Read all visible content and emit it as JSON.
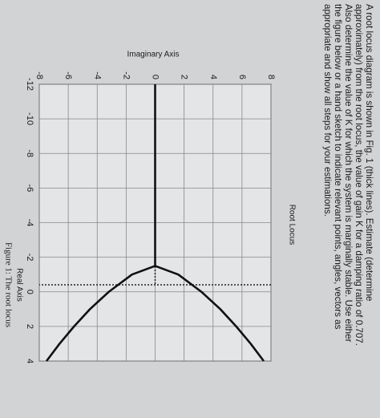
{
  "question": [
    "A root locus diagram is shown in Fig. 1 (thick lines). Estimate (determine",
    "approximately) from the root locus, the value of gain K for a damping ratio of 0.707.",
    "Also determine the value of K for which the system is marginally stable. Use either",
    "the figure below or a hand sketch to indicate relevant points, angles, vectors as",
    "appropriate and show all steps for your estimations."
  ],
  "caption": "Figure 1: The root locus",
  "chart_data": {
    "type": "line",
    "title": "Root Locus",
    "xlabel": "Real Axis",
    "ylabel": "Imaginary Axis",
    "xlim": [
      -12,
      4
    ],
    "xticks": [
      -12,
      -10,
      -8,
      -6,
      -4,
      -2,
      0,
      2,
      4
    ],
    "ylim": [
      -8,
      8
    ],
    "yticks": [
      -8,
      -6,
      -4,
      -2,
      0,
      2,
      4,
      6,
      8
    ],
    "grid": true,
    "series": [
      {
        "color": "#111111",
        "x": [
          -12,
          -1.5
        ],
        "values": [
          0,
          0
        ]
      },
      {
        "color": "#111111",
        "x": [
          -1.5,
          -1,
          0,
          1,
          2,
          3,
          4
        ],
        "values": [
          0,
          1.6,
          3.2,
          4.5,
          5.6,
          6.6,
          7.5
        ]
      },
      {
        "color": "#111111",
        "x": [
          -1.5,
          -1,
          0,
          1,
          2,
          3,
          4
        ],
        "values": [
          0,
          -1.6,
          -3.2,
          -4.5,
          -5.6,
          -6.6,
          -7.5
        ]
      }
    ]
  }
}
